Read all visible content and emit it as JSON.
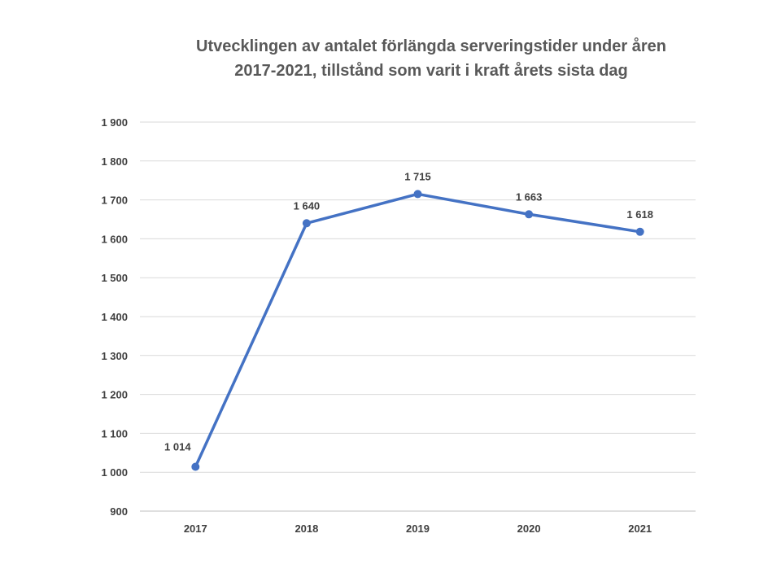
{
  "chart_data": {
    "type": "line",
    "title_line1": "Utvecklingen av antalet förlängda serveringstider under åren",
    "title_line2": "2017-2021, tillstånd som varit i kraft årets sista dag",
    "categories": [
      "2017",
      "2018",
      "2019",
      "2020",
      "2021"
    ],
    "series": [
      {
        "values": [
          1014,
          1640,
          1715,
          1663,
          1618
        ],
        "data_labels": [
          "1 014",
          "1 640",
          "1 715",
          "1 663",
          "1 618"
        ],
        "color": "#4472C4"
      }
    ],
    "ylim": [
      900,
      1900
    ],
    "y_ticks": [
      900,
      1000,
      1100,
      1200,
      1300,
      1400,
      1500,
      1600,
      1700,
      1800,
      1900
    ],
    "y_tick_labels": [
      "900",
      "1 000",
      "1 100",
      "1 200",
      "1 300",
      "1 400",
      "1 500",
      "1 600",
      "1 700",
      "1 800",
      "1 900"
    ],
    "grid": true,
    "legend": "none"
  }
}
